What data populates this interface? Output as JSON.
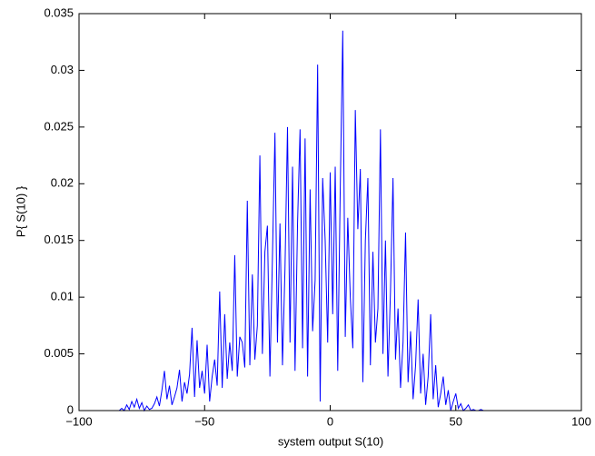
{
  "chart_data": {
    "type": "line",
    "xlabel": "system output S(10)",
    "ylabel": "P{ S(10) }",
    "x": [
      -100,
      -85,
      -84,
      -83,
      -82,
      -81,
      -80,
      -79,
      -78,
      -77,
      -76,
      -75,
      -74,
      -73,
      -72,
      -71,
      -70,
      -69,
      -68,
      -67,
      -66,
      -65,
      -64,
      -63,
      -62,
      -61,
      -60,
      -59,
      -58,
      -57,
      -56,
      -55,
      -54,
      -53,
      -52,
      -51,
      -50,
      -49,
      -48,
      -47,
      -46,
      -45,
      -44,
      -43,
      -42,
      -41,
      -40,
      -39,
      -38,
      -37,
      -36,
      -35,
      -34,
      -33,
      -32,
      -31,
      -30,
      -29,
      -28,
      -27,
      -26,
      -25,
      -24,
      -23,
      -22,
      -21,
      -20,
      -19,
      -18,
      -17,
      -16,
      -15,
      -14,
      -13,
      -12,
      -11,
      -10,
      -9,
      -8,
      -7,
      -6,
      -5,
      -4,
      -3,
      -2,
      -1,
      0,
      1,
      2,
      3,
      4,
      5,
      6,
      7,
      8,
      9,
      10,
      11,
      12,
      13,
      14,
      15,
      16,
      17,
      18,
      19,
      20,
      21,
      22,
      23,
      24,
      25,
      26,
      27,
      28,
      29,
      30,
      31,
      32,
      33,
      34,
      35,
      36,
      37,
      38,
      39,
      40,
      41,
      42,
      43,
      44,
      45,
      46,
      47,
      48,
      49,
      50,
      51,
      52,
      53,
      54,
      55,
      56,
      57,
      58,
      59,
      60,
      61,
      62,
      63,
      64,
      65,
      66,
      67,
      68,
      69,
      70,
      100
    ],
    "series": [
      {
        "color": "#0000ff",
        "values": [
          0,
          0,
          0,
          0.0002,
          0,
          0.0005,
          0.0001,
          0.0008,
          0.0003,
          0.001,
          0.0002,
          0.0007,
          0,
          0.0004,
          0.0001,
          0.0002,
          0.0006,
          0.0012,
          0.0004,
          0.0018,
          0.0035,
          0.001,
          0.0022,
          0.0005,
          0.0012,
          0.002,
          0.0036,
          0.0008,
          0.0025,
          0.0015,
          0.0032,
          0.0073,
          0.0012,
          0.0062,
          0.002,
          0.0035,
          0.0015,
          0.0058,
          0.0008,
          0.003,
          0.0045,
          0.0022,
          0.0105,
          0.002,
          0.0085,
          0.0028,
          0.006,
          0.0035,
          0.0137,
          0.003,
          0.0065,
          0.006,
          0.0038,
          0.0185,
          0.004,
          0.012,
          0.0045,
          0.0075,
          0.0225,
          0.005,
          0.014,
          0.0163,
          0.003,
          0.0135,
          0.0245,
          0.006,
          0.0165,
          0.004,
          0.0125,
          0.025,
          0.006,
          0.0215,
          0.0035,
          0.0165,
          0.0248,
          0.0055,
          0.024,
          0.003,
          0.0195,
          0.007,
          0.0115,
          0.0305,
          0.0008,
          0.0205,
          0.015,
          0.006,
          0.021,
          0.0085,
          0.0215,
          0.0035,
          0.0195,
          0.0335,
          0.0065,
          0.017,
          0.01,
          0.0055,
          0.0265,
          0.016,
          0.0213,
          0.0025,
          0.015,
          0.0205,
          0.004,
          0.014,
          0.006,
          0.009,
          0.0248,
          0.005,
          0.015,
          0.003,
          0.0105,
          0.0205,
          0.0045,
          0.009,
          0.002,
          0.006,
          0.0157,
          0.0025,
          0.007,
          0.001,
          0.004,
          0.0098,
          0.0015,
          0.005,
          0.0005,
          0.003,
          0.0085,
          0.001,
          0.004,
          0.0003,
          0.0015,
          0.003,
          0.0005,
          0.0018,
          0,
          0.0008,
          0.0015,
          0.0002,
          0.0006,
          0,
          0.0002,
          0.0005,
          0,
          0.0001,
          0,
          0,
          0.0001,
          0,
          0,
          0,
          0,
          0,
          0,
          0,
          0,
          0,
          0,
          0
        ]
      }
    ],
    "xlim": [
      -100,
      100
    ],
    "xticks": [
      {
        "value": -100,
        "label": "−100"
      },
      {
        "value": -50,
        "label": "−50"
      },
      0,
      50,
      100
    ],
    "ylim": [
      0,
      0.035
    ],
    "yticks": [
      0,
      0.005,
      0.01,
      0.015,
      0.02,
      0.025,
      0.03,
      0.035
    ]
  }
}
